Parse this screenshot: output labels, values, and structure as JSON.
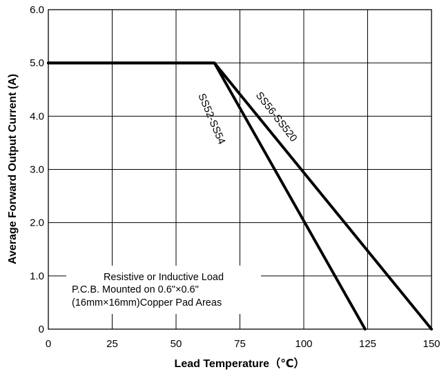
{
  "chart_data": {
    "type": "line",
    "title": "",
    "xlabel": "Lead Temperature（℃）",
    "ylabel": "Average Forward Output Current (A)",
    "xlim": [
      0,
      150
    ],
    "ylim": [
      0,
      6
    ],
    "grid": true,
    "x_ticks": [
      {
        "value": 0,
        "label": "0"
      },
      {
        "value": 25,
        "label": "25"
      },
      {
        "value": 50,
        "label": "50"
      },
      {
        "value": 75,
        "label": "75"
      },
      {
        "value": 100,
        "label": "100"
      },
      {
        "value": 125,
        "label": "125"
      },
      {
        "value": 150,
        "label": "150"
      }
    ],
    "y_ticks": [
      {
        "value": 0,
        "label": "0"
      },
      {
        "value": 1,
        "label": "1.0"
      },
      {
        "value": 2,
        "label": "2.0"
      },
      {
        "value": 3,
        "label": "3.0"
      },
      {
        "value": 4,
        "label": "4.0"
      },
      {
        "value": 5,
        "label": "5.0"
      },
      {
        "value": 6,
        "label": "6.0"
      }
    ],
    "series": [
      {
        "name": "SS52-SS54",
        "x": [
          0,
          65,
          124
        ],
        "y": [
          5.0,
          5.0,
          0
        ]
      },
      {
        "name": "SS56-SS520",
        "x": [
          0,
          65,
          150
        ],
        "y": [
          5.0,
          5.0,
          0
        ]
      }
    ],
    "annotation": {
      "lines": [
        "Resistive or Inductive Load",
        "P.C.B. Mounted on 0.6\"×0.6\"",
        "(16mm×16mm)Copper Pad Areas"
      ]
    },
    "colors": {
      "line": "#000000",
      "grid": "#000000",
      "background": "#ffffff"
    }
  }
}
